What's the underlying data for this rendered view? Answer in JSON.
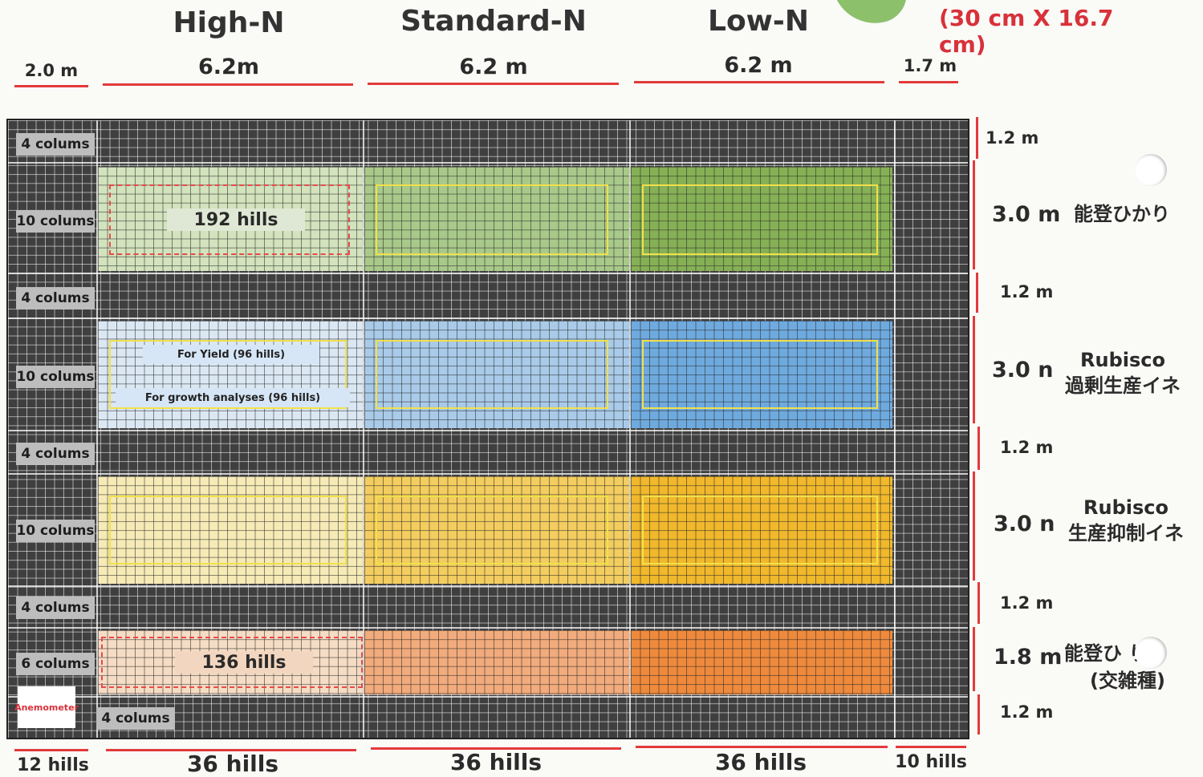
{
  "header": {
    "treatments": [
      "High-N",
      "Standard-N",
      "Low-N"
    ],
    "spacing_note": "(30 cm X 16.7 cm)",
    "widths": [
      "2.0 m",
      "6.2m",
      "6.2 m",
      "6.2 m",
      "1.7 m"
    ]
  },
  "rows": [
    {
      "columns": "4 colums",
      "height": "1.2 m"
    },
    {
      "columns": "10 colums",
      "height": "3.0 m",
      "variety": "能登ひかり",
      "plot_label": "192 hills"
    },
    {
      "columns": "4 colums",
      "height": "1.2 m"
    },
    {
      "columns": "10 colums",
      "height": "3.0 n",
      "variety_line1": "Rubisco",
      "variety_line2": "過剰生産イネ",
      "yield_label": "For Yield (96 hills)",
      "growth_label": "For growth analyses (96 hills)"
    },
    {
      "columns": "4 colums",
      "height": "1.2 m"
    },
    {
      "columns": "10 colums",
      "height": "3.0 n",
      "variety_line1": "Rubisco",
      "variety_line2": "生産抑制イネ"
    },
    {
      "columns": "4 colums",
      "height": "1.2 m"
    },
    {
      "columns": "6 colums",
      "height": "1.8 m",
      "variety_line1": "能登ひ  り",
      "variety_line2": "(交雑種)",
      "plot_label": "136 hills"
    },
    {
      "columns": "4 colums",
      "height": "1.2 m",
      "anemometer": "Anemometer"
    }
  ],
  "footer": [
    "12 hills",
    "36 hills",
    "36 hills",
    "36 hills",
    "10 hills"
  ],
  "colors": {
    "green": "#b9cf9b",
    "green_dark": "#7fa84f",
    "blue": "#c2d8ec",
    "blue_dark": "#5f9ed6",
    "yellow": "#f3e4a0",
    "yellow_dark": "#f0b428",
    "salmon": "#f2cfb0",
    "salmon_dark": "#ef8a3c",
    "accent_red": "#d8313a"
  }
}
